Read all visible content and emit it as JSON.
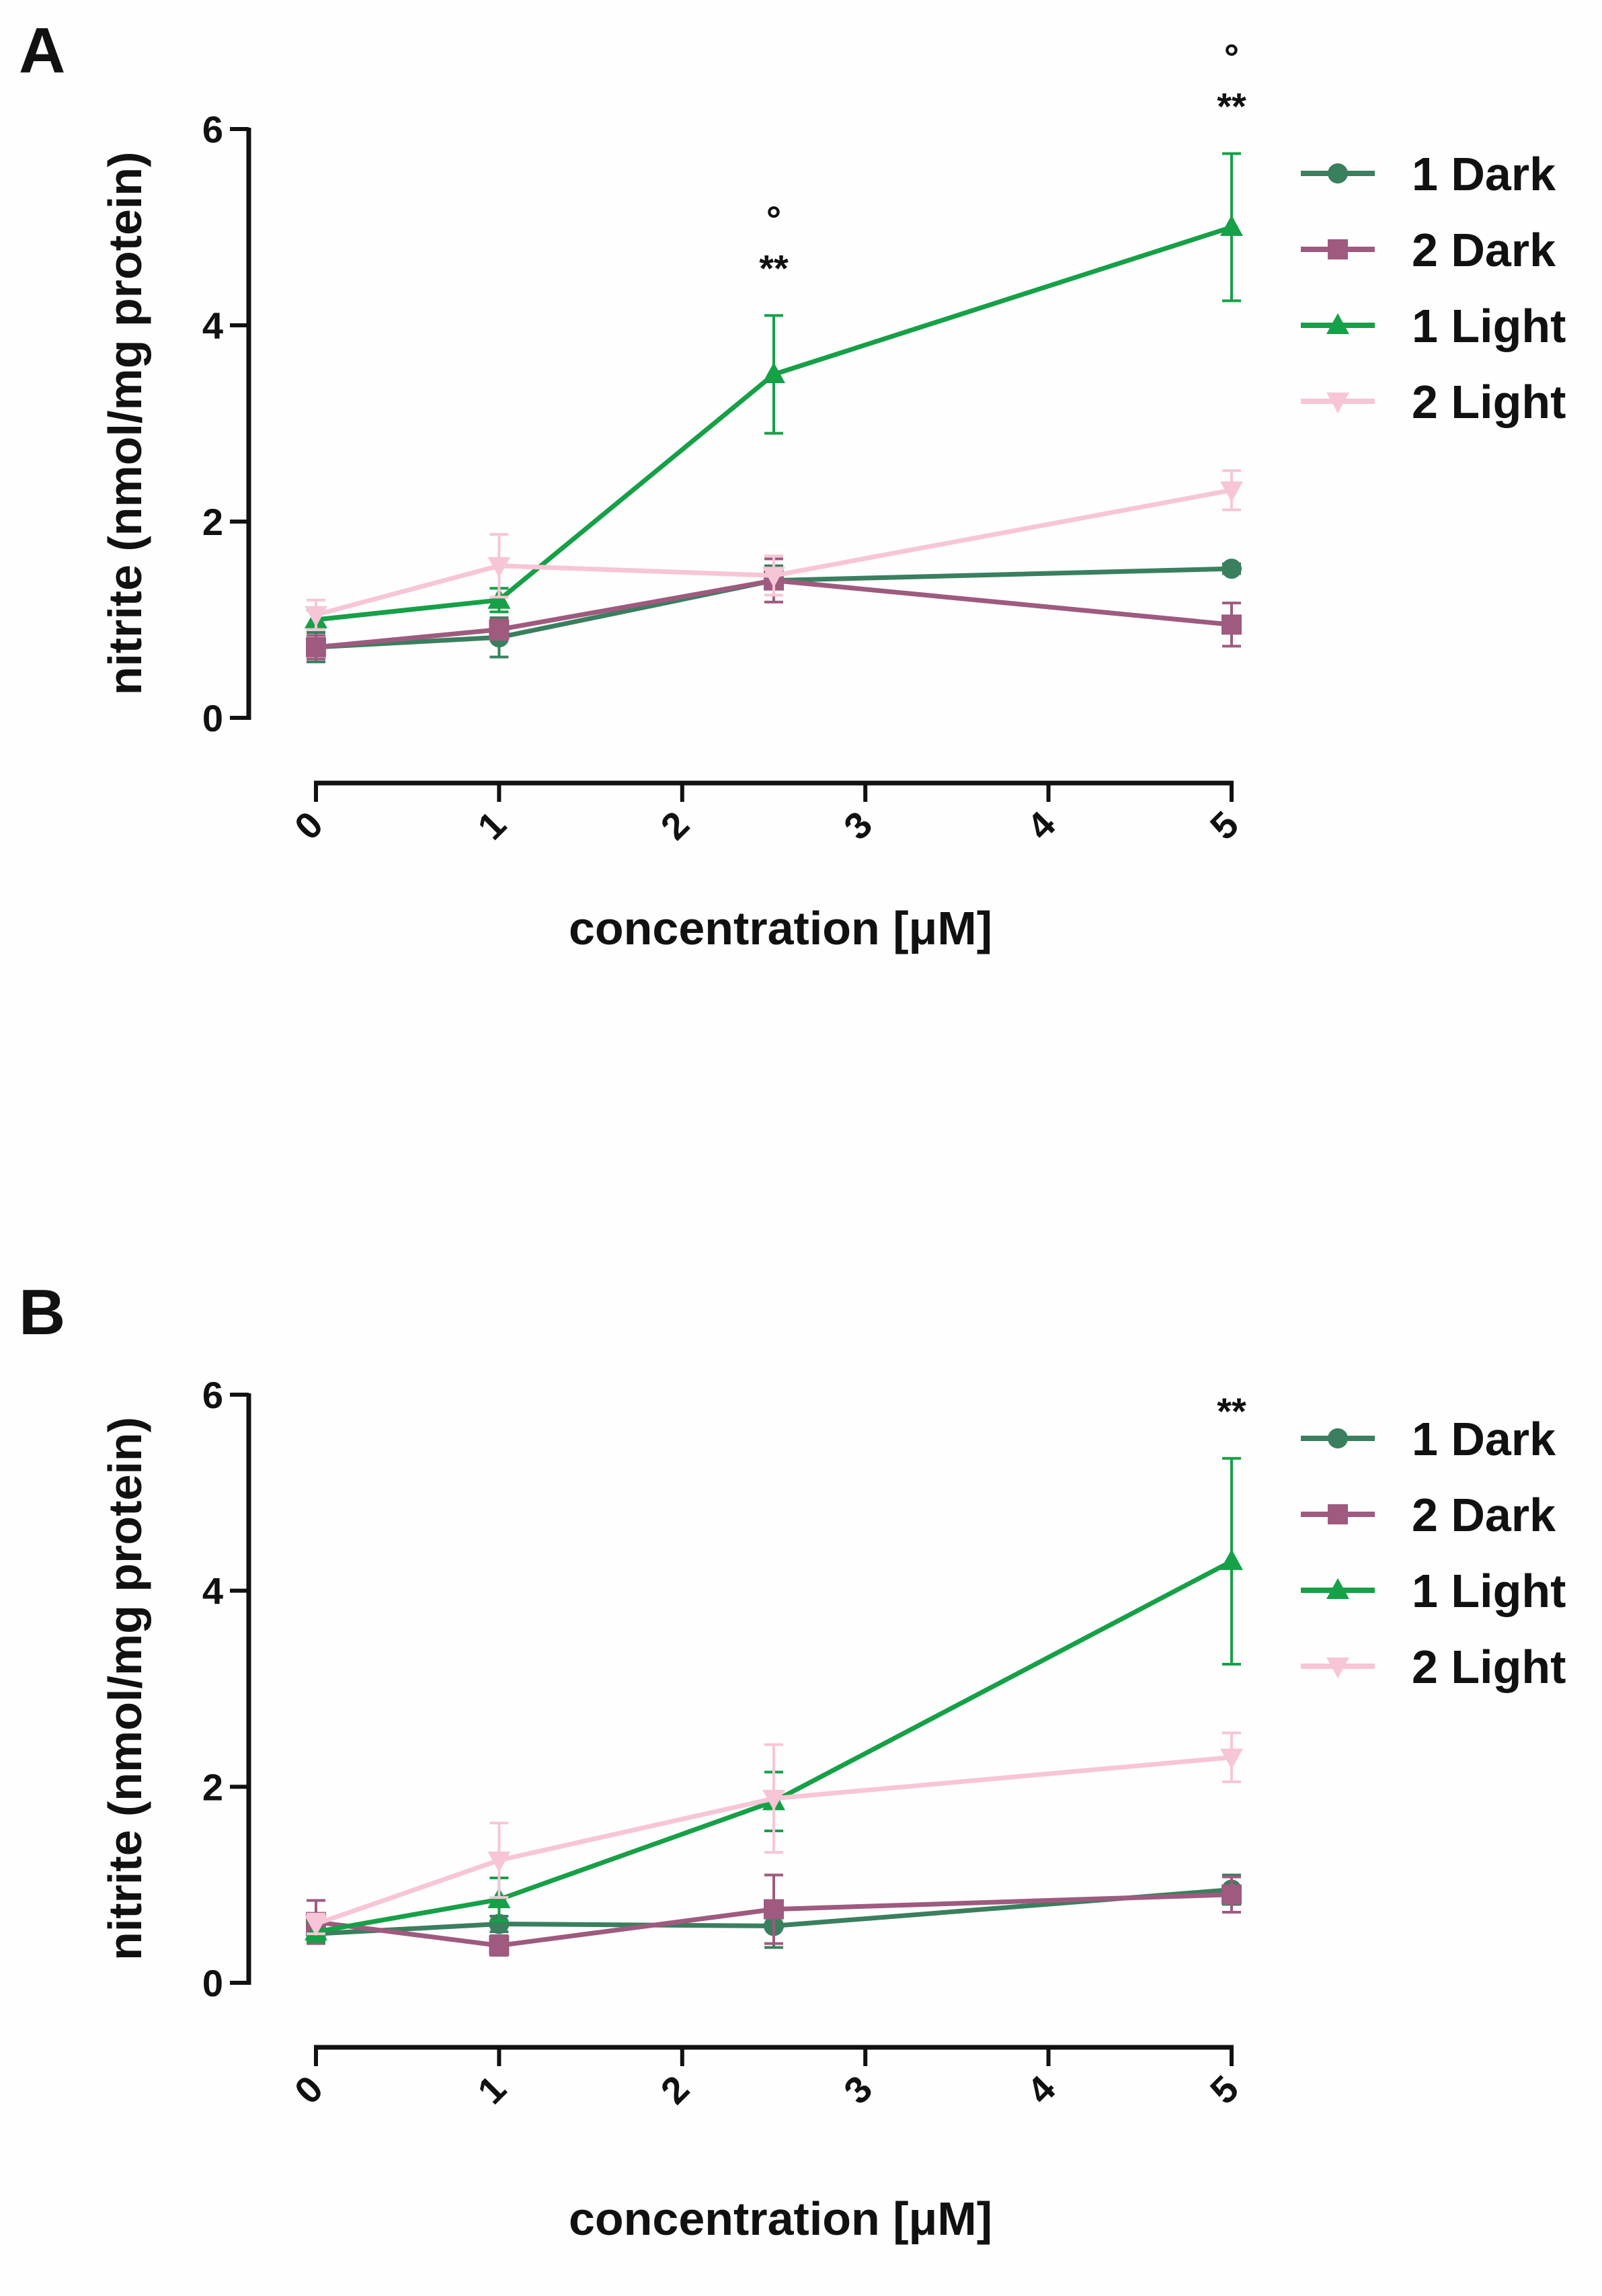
{
  "colors": {
    "1 Dark": "#3a7f5e",
    "2 Dark": "#9e5a7f",
    "1 Light": "#16a047",
    "2 Light": "#f7c6d6",
    "axis": "#111111"
  },
  "chart_data": [
    {
      "panel": "A",
      "type": "line",
      "xlabel": "concentration [μM]",
      "ylabel": "nitrite (nmol/mg protein)",
      "xlim": [
        0,
        5
      ],
      "ylim": [
        0,
        6
      ],
      "xticks": [
        0,
        1,
        2,
        3,
        4,
        5
      ],
      "yticks": [
        0,
        2,
        4,
        6
      ],
      "x": [
        0,
        1,
        2.5,
        5
      ],
      "legend": [
        "1 Dark",
        "2 Dark",
        "1 Light",
        "2 Light"
      ],
      "series": [
        {
          "name": "1 Dark",
          "marker": "circle",
          "values": [
            0.72,
            0.82,
            1.4,
            1.52
          ],
          "errors": [
            0.15,
            0.2,
            0.15,
            0.05
          ]
        },
        {
          "name": "2 Dark",
          "marker": "square",
          "values": [
            0.72,
            0.9,
            1.4,
            0.95
          ],
          "errors": [
            0.12,
            0.1,
            0.22,
            0.22
          ]
        },
        {
          "name": "1 Light",
          "marker": "triangle-up",
          "values": [
            1.0,
            1.2,
            3.5,
            5.0
          ],
          "errors": [
            0.1,
            0.12,
            0.6,
            0.75
          ]
        },
        {
          "name": "2 Light",
          "marker": "triangle-down",
          "values": [
            1.05,
            1.55,
            1.45,
            2.32
          ],
          "errors": [
            0.15,
            0.32,
            0.2,
            0.2
          ]
        }
      ],
      "annotations": [
        {
          "x": 2.5,
          "y": 4.45,
          "text": "**"
        },
        {
          "x": 2.5,
          "y": 4.95,
          "text": "°"
        },
        {
          "x": 5,
          "y": 6.1,
          "text": "**"
        },
        {
          "x": 5,
          "y": 6.6,
          "text": "°"
        }
      ]
    },
    {
      "panel": "B",
      "type": "line",
      "xlabel": "concentration [μM]",
      "ylabel": "nitrite (nmol/mg protein)",
      "xlim": [
        0,
        5
      ],
      "ylim": [
        0,
        6
      ],
      "xticks": [
        0,
        1,
        2,
        3,
        4,
        5
      ],
      "yticks": [
        0,
        2,
        4,
        6
      ],
      "x": [
        0,
        1,
        2.5,
        5
      ],
      "legend": [
        "1 Dark",
        "2 Dark",
        "1 Light",
        "2 Light"
      ],
      "series": [
        {
          "name": "1 Dark",
          "marker": "circle",
          "values": [
            0.5,
            0.6,
            0.58,
            0.95
          ],
          "errors": [
            0.08,
            0.08,
            0.22,
            0.15
          ]
        },
        {
          "name": "2 Dark",
          "marker": "square",
          "values": [
            0.62,
            0.38,
            0.75,
            0.9
          ],
          "errors": [
            0.22,
            0.1,
            0.35,
            0.18
          ]
        },
        {
          "name": "1 Light",
          "marker": "triangle-up",
          "values": [
            0.52,
            0.85,
            1.85,
            4.3
          ],
          "errors": [
            0.1,
            0.22,
            0.3,
            1.05
          ]
        },
        {
          "name": "2 Light",
          "marker": "triangle-down",
          "values": [
            0.6,
            1.25,
            1.88,
            2.3
          ],
          "errors": [
            0.1,
            0.38,
            0.55,
            0.25
          ]
        }
      ],
      "annotations": [
        {
          "x": 5,
          "y": 5.7,
          "text": "**"
        }
      ]
    }
  ]
}
